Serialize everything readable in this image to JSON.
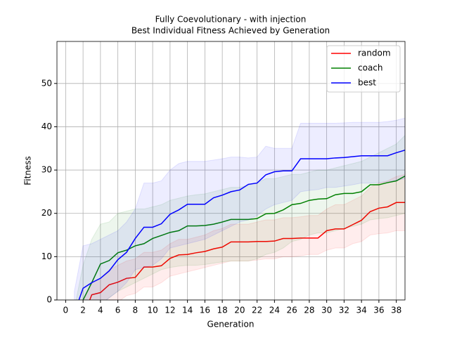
{
  "chart_data": {
    "type": "line",
    "title": "Fully Coevolutionary - with injection",
    "subtitle": "Best Individual Fitness Achieved by Generation",
    "x_label": "Generation",
    "y_label": "Fitness",
    "x": [
      1,
      2,
      3,
      4,
      5,
      6,
      7,
      8,
      9,
      10,
      11,
      12,
      13,
      14,
      15,
      16,
      17,
      18,
      19,
      20,
      21,
      22,
      23,
      24,
      25,
      26,
      27,
      28,
      29,
      30,
      31,
      32,
      33,
      34,
      35,
      36,
      37,
      38,
      39
    ],
    "series": [
      {
        "name": "random",
        "color": "#ff0000",
        "values": [
          -8,
          -4,
          1.2,
          1.7,
          3.5,
          4.1,
          5,
          5.2,
          7.6,
          7.6,
          7.9,
          9.6,
          10.4,
          10.5,
          10.9,
          11.2,
          11.8,
          12.2,
          13.4,
          13.4,
          13.4,
          13.5,
          13.5,
          13.6,
          14.2,
          14.2,
          14.3,
          14.3,
          14.3,
          16,
          16.4,
          16.4,
          17.4,
          18.4,
          20.4,
          21.2,
          21.5,
          22.5,
          22.5
        ],
        "upper": [
          -3,
          0,
          4,
          5,
          7,
          8,
          9,
          9.5,
          11,
          11,
          11.5,
          13,
          14,
          14,
          14.5,
          15,
          16,
          16.5,
          17.5,
          17.5,
          17.5,
          18,
          18.5,
          18.5,
          19,
          19,
          19.2,
          19.5,
          19.5,
          21,
          22,
          22,
          23,
          24,
          26,
          27,
          27.5,
          28.5,
          29
        ],
        "lower": [
          -12,
          -10,
          -4,
          -3,
          -1,
          -0.5,
          1,
          1.5,
          3,
          3,
          4,
          5.5,
          6,
          6.5,
          7,
          7.5,
          8,
          8.5,
          9,
          9,
          9,
          9.2,
          9.5,
          9.5,
          10,
          10,
          10.2,
          10.5,
          10.5,
          11.5,
          12,
          12,
          13,
          13.5,
          15,
          15.3,
          15.5,
          16,
          16
        ]
      },
      {
        "name": "coach",
        "color": "#008000",
        "values": [
          -6,
          0,
          4,
          8.3,
          9.1,
          10.9,
          11.5,
          12.5,
          13,
          14.2,
          14.9,
          15.6,
          16,
          17.1,
          17.1,
          17.2,
          17.5,
          18,
          18.6,
          18.6,
          18.6,
          18.8,
          19.9,
          20,
          20.8,
          22,
          22.3,
          23,
          23.3,
          23.4,
          24.3,
          24.6,
          24.6,
          25,
          26.6,
          26.6,
          27.1,
          27.5,
          28.6
        ],
        "upper": [
          -2,
          8,
          14,
          17.5,
          18,
          20,
          20.5,
          21,
          21,
          21.5,
          22,
          23,
          23.5,
          24,
          24.3,
          24.5,
          25,
          25.5,
          26,
          26,
          26.5,
          27,
          28,
          28,
          28.5,
          29,
          29,
          29.5,
          30,
          30,
          30.5,
          31,
          31.5,
          32,
          33,
          34,
          35,
          36,
          38
        ],
        "lower": [
          -10,
          -7,
          -4,
          -1,
          0.5,
          2,
          3,
          4,
          5,
          6,
          7,
          7.5,
          7.8,
          8,
          8,
          8.2,
          8.5,
          8.8,
          9,
          9,
          9,
          9.5,
          10.5,
          11,
          12,
          13.5,
          14,
          15,
          15.5,
          15.5,
          16,
          16.5,
          17,
          17.5,
          18.5,
          18.8,
          19,
          19.5,
          20
        ]
      },
      {
        "name": "best",
        "color": "#0000ff",
        "values": [
          -3,
          2.7,
          4,
          5,
          6.7,
          9.3,
          11,
          14.2,
          16.8,
          16.8,
          17.6,
          19.8,
          20.8,
          22.1,
          22.1,
          22.1,
          23.6,
          24.2,
          25,
          25.4,
          26.7,
          27,
          28.9,
          29.6,
          29.8,
          29.8,
          32.6,
          32.6,
          32.6,
          32.6,
          32.8,
          32.9,
          33.1,
          33.3,
          33.3,
          33.3,
          33.3,
          34,
          34.6
        ],
        "upper": [
          2,
          12.5,
          13,
          14,
          15,
          16,
          18,
          21,
          27,
          27,
          27.5,
          30,
          31.5,
          32,
          32,
          32,
          32.3,
          32.6,
          33,
          33,
          32.8,
          33,
          35.5,
          35,
          35,
          35,
          40.8,
          40.8,
          40.8,
          40.8,
          40.8,
          40.9,
          41,
          41,
          41,
          41,
          41.2,
          41.5,
          42
        ],
        "lower": [
          -6,
          -3,
          -2,
          -1,
          0.5,
          2,
          4,
          7,
          7.5,
          8,
          9.5,
          12,
          12.5,
          13,
          13.5,
          14,
          15,
          16,
          17,
          18,
          18.5,
          19.5,
          21,
          22,
          22.5,
          23,
          25,
          25.3,
          25.5,
          26,
          26,
          26.3,
          26.6,
          27,
          27,
          27.1,
          27.3,
          27.6,
          28
        ]
      }
    ],
    "xlim": [
      -1,
      39
    ],
    "xticks": [
      0,
      2,
      4,
      6,
      8,
      10,
      12,
      14,
      16,
      18,
      20,
      22,
      24,
      26,
      28,
      30,
      32,
      34,
      36,
      38
    ],
    "ylim": [
      0,
      59.7
    ],
    "yticks": [
      0,
      10,
      20,
      30,
      40,
      50
    ],
    "grid": true,
    "legend": "upper right"
  }
}
